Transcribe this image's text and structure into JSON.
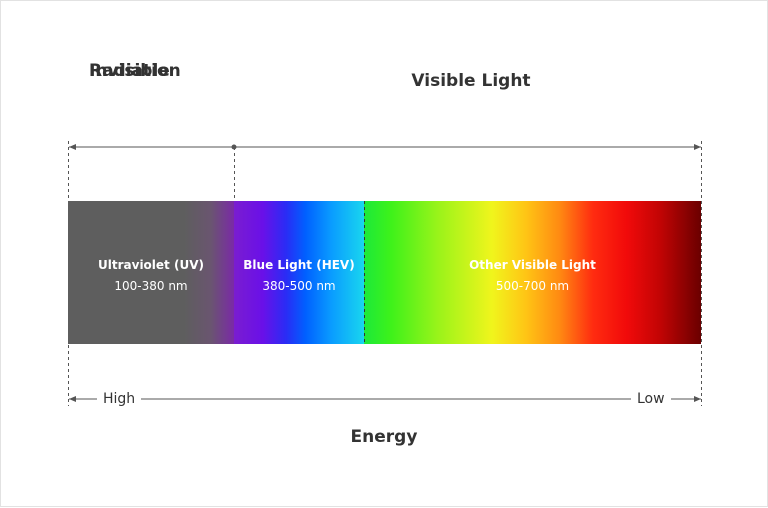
{
  "headings": {
    "invisible": [
      "Invisible",
      "Radiation"
    ],
    "visible": "Visible Light"
  },
  "segments": [
    {
      "title": "Ultraviolet (UV)",
      "range": "100-380 nm"
    },
    {
      "title": "Blue Light (HEV)",
      "range": "380-500 nm"
    },
    {
      "title": "Other Visible Light",
      "range": "500-700 nm"
    }
  ],
  "energy": {
    "title": "Energy",
    "high": "High",
    "low": "Low"
  },
  "colors": {
    "text": "#333333",
    "line": "#555555",
    "uv_gray": "#5e5e5e"
  }
}
